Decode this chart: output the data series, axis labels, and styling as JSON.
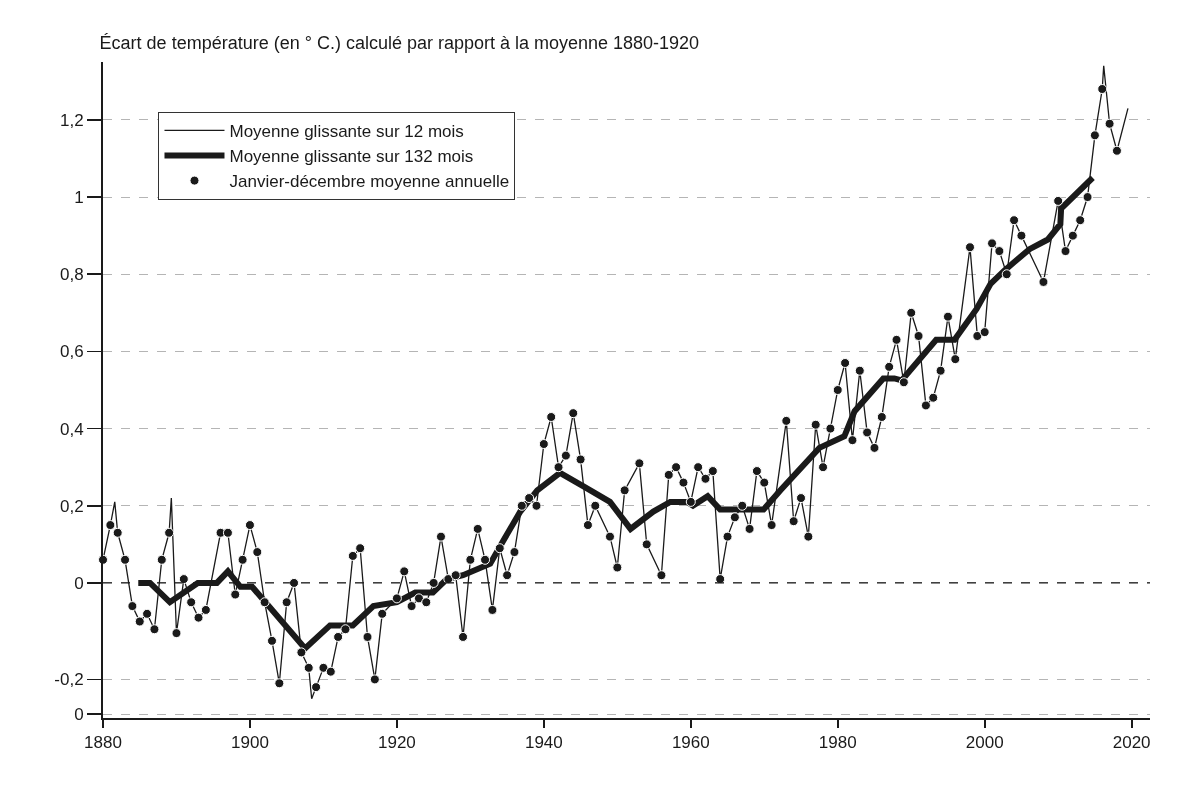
{
  "chart_data": {
    "type": "line",
    "title": "Écart de température (en ° C.) calculé par rapport à la moyenne 1880-1920",
    "xlim": [
      1880,
      2022.5
    ],
    "xticks": [
      1880,
      1900,
      1920,
      1940,
      1960,
      1980,
      2000,
      2020
    ],
    "ylim": [
      -0.35,
      1.35
    ],
    "yticks": [
      {
        "value": 1.2,
        "label": "1,2"
      },
      {
        "value": 1,
        "label": "1"
      },
      {
        "value": 0.8,
        "label": "0,8"
      },
      {
        "value": 0.6,
        "label": "0,6"
      },
      {
        "value": 0.4,
        "label": "0,4"
      },
      {
        "value": 0.2,
        "label": "0,2"
      },
      {
        "value": 0,
        "label": "0"
      },
      {
        "value": -0.25,
        "label": "-0,2"
      },
      {
        "value": -0.34,
        "label": "0"
      }
    ],
    "grid": "y",
    "legend": "top left",
    "ref_lines": [
      {
        "axis": "y",
        "value": 0,
        "color": "#1a1a1a",
        "line_style": "dashed"
      }
    ],
    "series": [
      {
        "name": "Moyenne glissante sur 12 mois",
        "color": "#1a1a1a",
        "marker": "none",
        "line_style": "solid",
        "x": [
          1880,
          1881,
          1881.6,
          1882,
          1883,
          1884,
          1885,
          1886,
          1887,
          1888,
          1889,
          1889.3,
          1890,
          1891,
          1892,
          1893,
          1894,
          1896,
          1897,
          1898,
          1899,
          1900,
          1901,
          1902,
          1903,
          1904,
          1905,
          1906,
          1907,
          1908,
          1908.4,
          1909,
          1910,
          1911,
          1912,
          1913,
          1914,
          1915,
          1916,
          1917,
          1918,
          1920,
          1921,
          1922,
          1923,
          1924,
          1925,
          1926,
          1927,
          1928,
          1929,
          1930,
          1931,
          1932,
          1933,
          1934,
          1935,
          1936,
          1937,
          1938,
          1939,
          1940,
          1941,
          1942,
          1943,
          1944,
          1945,
          1946,
          1947,
          1949,
          1950,
          1951,
          1953,
          1954,
          1956,
          1957,
          1958,
          1959,
          1960,
          1961,
          1962,
          1963,
          1964,
          1965,
          1966,
          1967,
          1968,
          1969,
          1970,
          1971,
          1973,
          1974,
          1975,
          1976,
          1977,
          1978,
          1979,
          1980,
          1981,
          1982,
          1983,
          1984,
          1985,
          1986,
          1987,
          1988,
          1989,
          1990,
          1991,
          1992,
          1993,
          1994,
          1995,
          1996,
          1998,
          1999,
          2000,
          2001,
          2002,
          2003,
          2004,
          2005,
          2008,
          2010,
          2011,
          2012,
          2013,
          2014,
          2015,
          2016,
          2016.2,
          2017,
          2018,
          2019.5
        ],
        "values": [
          0.06,
          0.15,
          0.21,
          0.13,
          0.06,
          -0.06,
          -0.1,
          -0.08,
          -0.12,
          0.06,
          0.13,
          0.22,
          -0.13,
          0.01,
          -0.05,
          -0.09,
          -0.07,
          0.13,
          0.13,
          -0.03,
          0.06,
          0.15,
          0.08,
          -0.05,
          -0.15,
          -0.26,
          -0.05,
          0.0,
          -0.18,
          -0.22,
          -0.3,
          -0.27,
          -0.22,
          -0.23,
          -0.14,
          -0.12,
          0.07,
          0.09,
          -0.14,
          -0.25,
          -0.08,
          -0.04,
          0.03,
          -0.06,
          -0.04,
          -0.05,
          0.0,
          0.12,
          0.01,
          0.02,
          -0.14,
          0.06,
          0.14,
          0.06,
          -0.07,
          0.09,
          0.02,
          0.08,
          0.2,
          0.22,
          0.2,
          0.36,
          0.43,
          0.3,
          0.33,
          0.44,
          0.32,
          0.15,
          0.2,
          0.12,
          0.04,
          0.24,
          0.31,
          0.1,
          0.02,
          0.28,
          0.3,
          0.26,
          0.21,
          0.3,
          0.27,
          0.29,
          0.01,
          0.12,
          0.17,
          0.2,
          0.14,
          0.29,
          0.26,
          0.15,
          0.42,
          0.16,
          0.22,
          0.12,
          0.41,
          0.3,
          0.4,
          0.5,
          0.57,
          0.37,
          0.55,
          0.39,
          0.35,
          0.43,
          0.56,
          0.63,
          0.52,
          0.7,
          0.64,
          0.46,
          0.48,
          0.55,
          0.69,
          0.58,
          0.87,
          0.64,
          0.65,
          0.88,
          0.86,
          0.8,
          0.94,
          0.9,
          0.78,
          0.99,
          0.86,
          0.9,
          0.94,
          1.0,
          1.16,
          1.28,
          1.34,
          1.19,
          1.12,
          1.23
        ]
      },
      {
        "name": "Moyenne glissante sur 132 mois",
        "color": "#1a1a1a",
        "marker": "none",
        "line_style": "solid",
        "x": [
          1884.8,
          1886.4,
          1889.1,
          1892.9,
          1895.5,
          1897,
          1898.7,
          1900.3,
          1907.5,
          1910.9,
          1914,
          1916.8,
          1920,
          1922.5,
          1924.9,
          1926.8,
          1929,
          1932.7,
          1934.5,
          1936.8,
          1939.1,
          1942.2,
          1945.4,
          1949,
          1951.8,
          1954.9,
          1957.2,
          1959.5,
          1960.3,
          1962.3,
          1964,
          1969.9,
          1972.2,
          1977.5,
          1980.9,
          1982.3,
          1986.2,
          1987.7,
          1988.7,
          1993.4,
          1995.9,
          1998.9,
          2000.8,
          2002.7,
          2006.1,
          2008.6,
          2010.3,
          2010.4,
          2014.7
        ],
        "values": [
          0,
          0,
          -0.05,
          0,
          0,
          0.03,
          -0.01,
          -0.01,
          -0.17,
          -0.11,
          -0.11,
          -0.06,
          -0.05,
          -0.025,
          -0.025,
          0.01,
          0.02,
          0.05,
          0.11,
          0.185,
          0.24,
          0.285,
          0.25,
          0.21,
          0.14,
          0.185,
          0.21,
          0.21,
          0.2,
          0.225,
          0.19,
          0.19,
          0.24,
          0.35,
          0.38,
          0.445,
          0.53,
          0.53,
          0.525,
          0.63,
          0.63,
          0.71,
          0.775,
          0.81,
          0.865,
          0.89,
          0.93,
          0.97,
          1.05
        ]
      },
      {
        "name": "Janvier-décembre moyenne annuelle",
        "type": "scatter",
        "color": "#1a1a1a",
        "marker": "circle",
        "x": [
          1880,
          1881,
          1882,
          1883,
          1884,
          1885,
          1886,
          1887,
          1888,
          1889,
          1890,
          1891,
          1892,
          1893,
          1894,
          1896,
          1897,
          1898,
          1899,
          1900,
          1901,
          1902,
          1903,
          1904,
          1905,
          1906,
          1907,
          1908,
          1909,
          1910,
          1911,
          1912,
          1913,
          1914,
          1915,
          1916,
          1917,
          1918,
          1920,
          1921,
          1922,
          1923,
          1924,
          1925,
          1926,
          1927,
          1928,
          1929,
          1930,
          1931,
          1932,
          1933,
          1934,
          1935,
          1936,
          1937,
          1938,
          1939,
          1940,
          1941,
          1942,
          1943,
          1944,
          1945,
          1946,
          1947,
          1949,
          1950,
          1951,
          1953,
          1954,
          1956,
          1957,
          1958,
          1959,
          1960,
          1961,
          1962,
          1963,
          1964,
          1965,
          1966,
          1967,
          1968,
          1969,
          1970,
          1971,
          1973,
          1974,
          1975,
          1976,
          1977,
          1978,
          1979,
          1980,
          1981,
          1982,
          1983,
          1984,
          1985,
          1986,
          1987,
          1988,
          1989,
          1990,
          1991,
          1992,
          1993,
          1994,
          1995,
          1996,
          1998,
          1999,
          2000,
          2001,
          2002,
          2003,
          2004,
          2005,
          2008,
          2010,
          2011,
          2012,
          2013,
          2014,
          2015,
          2016,
          2017,
          2018
        ],
        "values": [
          0.06,
          0.15,
          0.13,
          0.06,
          -0.06,
          -0.1,
          -0.08,
          -0.12,
          0.06,
          0.13,
          -0.13,
          0.01,
          -0.05,
          -0.09,
          -0.07,
          0.13,
          0.13,
          -0.03,
          0.06,
          0.15,
          0.08,
          -0.05,
          -0.15,
          -0.26,
          -0.05,
          0.0,
          -0.18,
          -0.22,
          -0.27,
          -0.22,
          -0.23,
          -0.14,
          -0.12,
          0.07,
          0.09,
          -0.14,
          -0.25,
          -0.08,
          -0.04,
          0.03,
          -0.06,
          -0.04,
          -0.05,
          0.0,
          0.12,
          0.01,
          0.02,
          -0.14,
          0.06,
          0.14,
          0.06,
          -0.07,
          0.09,
          0.02,
          0.08,
          0.2,
          0.22,
          0.2,
          0.36,
          0.43,
          0.3,
          0.33,
          0.44,
          0.32,
          0.15,
          0.2,
          0.12,
          0.04,
          0.24,
          0.31,
          0.1,
          0.02,
          0.28,
          0.3,
          0.26,
          0.21,
          0.3,
          0.27,
          0.29,
          0.01,
          0.12,
          0.17,
          0.2,
          0.14,
          0.29,
          0.26,
          0.15,
          0.42,
          0.16,
          0.22,
          0.12,
          0.41,
          0.3,
          0.4,
          0.5,
          0.57,
          0.37,
          0.55,
          0.39,
          0.35,
          0.43,
          0.56,
          0.63,
          0.52,
          0.7,
          0.64,
          0.46,
          0.48,
          0.55,
          0.69,
          0.58,
          0.87,
          0.64,
          0.65,
          0.88,
          0.86,
          0.8,
          0.94,
          0.9,
          0.78,
          0.99,
          0.86,
          0.9,
          0.94,
          1.0,
          1.16,
          1.28,
          1.19,
          1.12
        ]
      }
    ]
  }
}
